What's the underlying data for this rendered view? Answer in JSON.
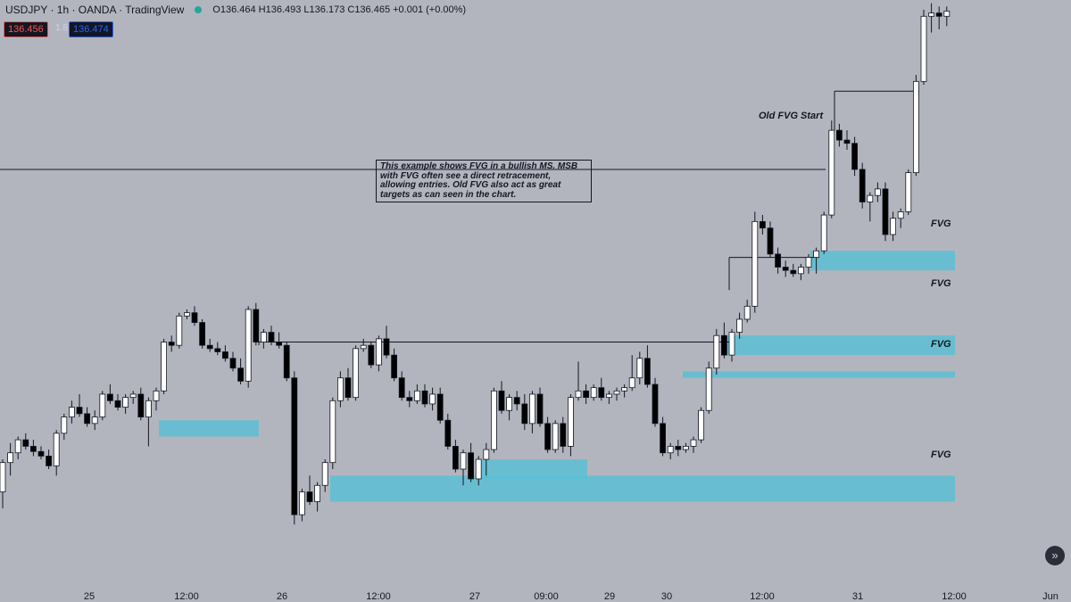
{
  "header": {
    "symbol_line": "USDJPY · 1h · OANDA · TradingView",
    "ohlc": "O136.464 H136.493 L136.173 C136.465 +0.001 (+0.00%)",
    "bid": "136.456",
    "spread": "1.8",
    "ask": "136.474"
  },
  "annotations": {
    "note": "This example shows FVG in a bullish MS. MSB with FVG often see a direct retracement, allowing entries. Old FVG also act as great targets as can seen in the chart.",
    "old_fvg_start": "Old FVG Start",
    "fvg_labels": [
      "FVG",
      "FVG",
      "FVG",
      "FVG"
    ]
  },
  "scroll_button": "»",
  "colors": {
    "background": "#b2b5be",
    "fvg_zone": "#5bc0d3",
    "bull_candle": "#ffffff",
    "bear_candle": "#000000"
  },
  "chart_data": {
    "type": "candlestick",
    "symbol": "USDJPY",
    "timeframe": "1h",
    "x_tick_labels": [
      "25",
      "12:00",
      "26",
      "12:00",
      "27",
      "09:00",
      "29",
      "30",
      "12:00",
      "31",
      "12:00",
      "Jun"
    ],
    "candles": [
      {
        "o": 133.8,
        "h": 134.3,
        "l": 133.55,
        "c": 134.25
      },
      {
        "o": 134.25,
        "h": 134.55,
        "l": 134.05,
        "c": 134.4
      },
      {
        "o": 134.4,
        "h": 134.65,
        "l": 134.3,
        "c": 134.6
      },
      {
        "o": 134.6,
        "h": 134.7,
        "l": 134.45,
        "c": 134.5
      },
      {
        "o": 134.5,
        "h": 134.6,
        "l": 134.35,
        "c": 134.42
      },
      {
        "o": 134.42,
        "h": 134.5,
        "l": 134.3,
        "c": 134.35
      },
      {
        "o": 134.35,
        "h": 134.45,
        "l": 134.15,
        "c": 134.2
      },
      {
        "o": 134.2,
        "h": 134.75,
        "l": 134.05,
        "c": 134.7
      },
      {
        "o": 134.7,
        "h": 135.0,
        "l": 134.6,
        "c": 134.95
      },
      {
        "o": 134.95,
        "h": 135.2,
        "l": 134.85,
        "c": 135.1
      },
      {
        "o": 135.1,
        "h": 135.3,
        "l": 134.95,
        "c": 135.0
      },
      {
        "o": 135.0,
        "h": 135.1,
        "l": 134.8,
        "c": 134.85
      },
      {
        "o": 134.85,
        "h": 135.05,
        "l": 134.75,
        "c": 134.95
      },
      {
        "o": 134.95,
        "h": 135.35,
        "l": 134.9,
        "c": 135.3
      },
      {
        "o": 135.3,
        "h": 135.45,
        "l": 135.15,
        "c": 135.2
      },
      {
        "o": 135.2,
        "h": 135.3,
        "l": 135.05,
        "c": 135.1
      },
      {
        "o": 135.1,
        "h": 135.3,
        "l": 135.0,
        "c": 135.25
      },
      {
        "o": 135.25,
        "h": 135.35,
        "l": 135.15,
        "c": 135.3
      },
      {
        "o": 135.3,
        "h": 135.4,
        "l": 134.9,
        "c": 134.95
      },
      {
        "o": 134.95,
        "h": 135.25,
        "l": 134.5,
        "c": 135.2
      },
      {
        "o": 135.2,
        "h": 135.4,
        "l": 135.05,
        "c": 135.35
      },
      {
        "o": 135.35,
        "h": 136.15,
        "l": 135.3,
        "c": 136.1
      },
      {
        "o": 136.1,
        "h": 136.2,
        "l": 135.95,
        "c": 136.05
      },
      {
        "o": 136.05,
        "h": 136.55,
        "l": 136.0,
        "c": 136.5
      },
      {
        "o": 136.5,
        "h": 136.6,
        "l": 136.45,
        "c": 136.55
      },
      {
        "o": 136.55,
        "h": 136.65,
        "l": 136.35,
        "c": 136.4
      },
      {
        "o": 136.4,
        "h": 136.45,
        "l": 136.0,
        "c": 136.05
      },
      {
        "o": 136.05,
        "h": 136.15,
        "l": 135.95,
        "c": 136.0
      },
      {
        "o": 136.0,
        "h": 136.1,
        "l": 135.9,
        "c": 135.95
      },
      {
        "o": 135.95,
        "h": 136.05,
        "l": 135.8,
        "c": 135.85
      },
      {
        "o": 135.85,
        "h": 135.95,
        "l": 135.65,
        "c": 135.7
      },
      {
        "o": 135.7,
        "h": 135.85,
        "l": 135.45,
        "c": 135.5
      },
      {
        "o": 135.5,
        "h": 136.65,
        "l": 135.4,
        "c": 136.6
      },
      {
        "o": 136.6,
        "h": 136.7,
        "l": 136.05,
        "c": 136.1
      },
      {
        "o": 136.1,
        "h": 136.3,
        "l": 136.0,
        "c": 136.25
      },
      {
        "o": 136.25,
        "h": 136.35,
        "l": 136.05,
        "c": 136.1
      },
      {
        "o": 136.1,
        "h": 136.25,
        "l": 136.0,
        "c": 136.05
      },
      {
        "o": 136.05,
        "h": 136.1,
        "l": 135.5,
        "c": 135.55
      },
      {
        "o": 135.55,
        "h": 135.65,
        "l": 133.3,
        "c": 133.45
      },
      {
        "o": 133.45,
        "h": 133.85,
        "l": 133.35,
        "c": 133.8
      },
      {
        "o": 133.8,
        "h": 134.05,
        "l": 133.6,
        "c": 133.65
      },
      {
        "o": 133.65,
        "h": 133.95,
        "l": 133.5,
        "c": 133.9
      },
      {
        "o": 133.9,
        "h": 134.3,
        "l": 133.8,
        "c": 134.25
      },
      {
        "o": 134.25,
        "h": 135.25,
        "l": 134.15,
        "c": 135.2
      },
      {
        "o": 135.2,
        "h": 135.65,
        "l": 135.1,
        "c": 135.55
      },
      {
        "o": 135.55,
        "h": 135.7,
        "l": 135.2,
        "c": 135.25
      },
      {
        "o": 135.25,
        "h": 136.05,
        "l": 135.2,
        "c": 136.0
      },
      {
        "o": 136.0,
        "h": 136.15,
        "l": 135.95,
        "c": 136.05
      },
      {
        "o": 136.05,
        "h": 136.1,
        "l": 135.7,
        "c": 135.75
      },
      {
        "o": 135.75,
        "h": 136.2,
        "l": 135.65,
        "c": 136.15
      },
      {
        "o": 136.15,
        "h": 136.35,
        "l": 135.85,
        "c": 135.9
      },
      {
        "o": 135.9,
        "h": 136.0,
        "l": 135.5,
        "c": 135.55
      },
      {
        "o": 135.55,
        "h": 135.65,
        "l": 135.2,
        "c": 135.25
      },
      {
        "o": 135.25,
        "h": 135.35,
        "l": 135.1,
        "c": 135.2
      },
      {
        "o": 135.2,
        "h": 135.45,
        "l": 135.15,
        "c": 135.35
      },
      {
        "o": 135.35,
        "h": 135.45,
        "l": 135.1,
        "c": 135.15
      },
      {
        "o": 135.15,
        "h": 135.4,
        "l": 135.05,
        "c": 135.3
      },
      {
        "o": 135.3,
        "h": 135.4,
        "l": 134.85,
        "c": 134.9
      },
      {
        "o": 134.9,
        "h": 135.0,
        "l": 134.45,
        "c": 134.5
      },
      {
        "o": 134.5,
        "h": 134.6,
        "l": 134.1,
        "c": 134.15
      },
      {
        "o": 134.15,
        "h": 134.45,
        "l": 133.9,
        "c": 134.4
      },
      {
        "o": 134.4,
        "h": 134.55,
        "l": 133.95,
        "c": 134.0
      },
      {
        "o": 134.0,
        "h": 134.35,
        "l": 133.9,
        "c": 134.3
      },
      {
        "o": 134.3,
        "h": 134.55,
        "l": 134.05,
        "c": 134.45
      },
      {
        "o": 134.45,
        "h": 135.4,
        "l": 134.4,
        "c": 135.35
      },
      {
        "o": 135.35,
        "h": 135.5,
        "l": 135.0,
        "c": 135.05
      },
      {
        "o": 135.05,
        "h": 135.3,
        "l": 134.9,
        "c": 135.25
      },
      {
        "o": 135.25,
        "h": 135.35,
        "l": 135.05,
        "c": 135.15
      },
      {
        "o": 135.15,
        "h": 135.3,
        "l": 134.75,
        "c": 134.85
      },
      {
        "o": 134.85,
        "h": 135.35,
        "l": 134.7,
        "c": 135.3
      },
      {
        "o": 135.3,
        "h": 135.4,
        "l": 134.8,
        "c": 134.85
      },
      {
        "o": 134.85,
        "h": 134.95,
        "l": 134.4,
        "c": 134.45
      },
      {
        "o": 134.45,
        "h": 134.9,
        "l": 134.4,
        "c": 134.85
      },
      {
        "o": 134.85,
        "h": 134.95,
        "l": 134.4,
        "c": 134.5
      },
      {
        "o": 134.5,
        "h": 135.3,
        "l": 134.35,
        "c": 135.25
      },
      {
        "o": 135.25,
        "h": 135.8,
        "l": 135.2,
        "c": 135.35
      },
      {
        "o": 135.35,
        "h": 135.45,
        "l": 135.15,
        "c": 135.25
      },
      {
        "o": 135.25,
        "h": 135.45,
        "l": 135.2,
        "c": 135.4
      },
      {
        "o": 135.4,
        "h": 135.55,
        "l": 135.2,
        "c": 135.25
      },
      {
        "o": 135.25,
        "h": 135.35,
        "l": 135.15,
        "c": 135.3
      },
      {
        "o": 135.3,
        "h": 135.4,
        "l": 135.2,
        "c": 135.35
      },
      {
        "o": 135.35,
        "h": 135.45,
        "l": 135.25,
        "c": 135.4
      },
      {
        "o": 135.4,
        "h": 135.9,
        "l": 135.35,
        "c": 135.55
      },
      {
        "o": 135.55,
        "h": 135.95,
        "l": 135.45,
        "c": 135.85
      },
      {
        "o": 135.85,
        "h": 136.05,
        "l": 135.4,
        "c": 135.45
      },
      {
        "o": 135.45,
        "h": 135.55,
        "l": 134.8,
        "c": 134.85
      },
      {
        "o": 134.85,
        "h": 134.95,
        "l": 134.35,
        "c": 134.4
      },
      {
        "o": 134.4,
        "h": 134.55,
        "l": 134.3,
        "c": 134.5
      },
      {
        "o": 134.5,
        "h": 134.6,
        "l": 134.35,
        "c": 134.45
      },
      {
        "o": 134.45,
        "h": 134.55,
        "l": 134.4,
        "c": 134.5
      },
      {
        "o": 134.5,
        "h": 134.65,
        "l": 134.4,
        "c": 134.6
      },
      {
        "o": 134.6,
        "h": 135.1,
        "l": 134.55,
        "c": 135.05
      },
      {
        "o": 135.05,
        "h": 135.8,
        "l": 135.0,
        "c": 135.7
      },
      {
        "o": 135.7,
        "h": 136.3,
        "l": 135.6,
        "c": 136.2
      },
      {
        "o": 136.2,
        "h": 136.4,
        "l": 135.85,
        "c": 135.9
      },
      {
        "o": 135.9,
        "h": 136.3,
        "l": 135.8,
        "c": 136.25
      },
      {
        "o": 136.25,
        "h": 136.55,
        "l": 136.15,
        "c": 136.45
      },
      {
        "o": 136.45,
        "h": 136.75,
        "l": 136.4,
        "c": 136.65
      },
      {
        "o": 136.65,
        "h": 138.1,
        "l": 136.55,
        "c": 137.95
      },
      {
        "o": 137.95,
        "h": 138.05,
        "l": 137.75,
        "c": 137.85
      },
      {
        "o": 137.85,
        "h": 137.95,
        "l": 137.4,
        "c": 137.45
      },
      {
        "o": 137.45,
        "h": 137.55,
        "l": 137.15,
        "c": 137.25
      },
      {
        "o": 137.25,
        "h": 137.35,
        "l": 137.1,
        "c": 137.2
      },
      {
        "o": 137.2,
        "h": 137.3,
        "l": 137.1,
        "c": 137.15
      },
      {
        "o": 137.15,
        "h": 137.3,
        "l": 137.05,
        "c": 137.25
      },
      {
        "o": 137.25,
        "h": 137.45,
        "l": 137.15,
        "c": 137.4
      },
      {
        "o": 137.4,
        "h": 137.55,
        "l": 137.15,
        "c": 137.5
      },
      {
        "o": 137.5,
        "h": 138.1,
        "l": 137.45,
        "c": 138.05
      },
      {
        "o": 138.05,
        "h": 139.5,
        "l": 138.0,
        "c": 139.35
      },
      {
        "o": 139.35,
        "h": 139.45,
        "l": 139.1,
        "c": 139.2
      },
      {
        "o": 139.2,
        "h": 139.35,
        "l": 139.05,
        "c": 139.15
      },
      {
        "o": 139.15,
        "h": 139.25,
        "l": 138.65,
        "c": 138.75
      },
      {
        "o": 138.75,
        "h": 138.85,
        "l": 138.15,
        "c": 138.25
      },
      {
        "o": 138.25,
        "h": 138.4,
        "l": 137.95,
        "c": 138.35
      },
      {
        "o": 138.35,
        "h": 138.55,
        "l": 138.25,
        "c": 138.45
      },
      {
        "o": 138.45,
        "h": 138.55,
        "l": 137.65,
        "c": 137.75
      },
      {
        "o": 137.75,
        "h": 138.1,
        "l": 137.65,
        "c": 138.0
      },
      {
        "o": 138.0,
        "h": 138.15,
        "l": 137.85,
        "c": 138.1
      },
      {
        "o": 138.1,
        "h": 138.75,
        "l": 138.05,
        "c": 138.7
      },
      {
        "o": 138.7,
        "h": 140.2,
        "l": 138.65,
        "c": 140.1
      },
      {
        "o": 140.1,
        "h": 141.2,
        "l": 140.05,
        "c": 141.1
      },
      {
        "o": 141.1,
        "h": 141.3,
        "l": 140.85,
        "c": 141.15
      },
      {
        "o": 141.15,
        "h": 141.25,
        "l": 140.9,
        "c": 141.1
      },
      {
        "o": 141.1,
        "h": 141.25,
        "l": 140.95,
        "c": 141.18
      }
    ],
    "levels": [
      {
        "name": "old-fvg-start-line",
        "price": 138.75
      },
      {
        "name": "msb-level-1",
        "price": 136.1
      },
      {
        "name": "msb-level-2",
        "price": 137.4
      },
      {
        "name": "msb-level-3",
        "price": 139.95
      }
    ],
    "fvg_zones": [
      {
        "top": 134.9,
        "bottom": 134.65
      },
      {
        "top": 134.05,
        "bottom": 133.65
      },
      {
        "top": 134.3,
        "bottom": 134.0
      },
      {
        "top": 135.65,
        "bottom": 135.55
      },
      {
        "top": 136.2,
        "bottom": 135.9
      },
      {
        "top": 137.5,
        "bottom": 137.2
      }
    ]
  }
}
